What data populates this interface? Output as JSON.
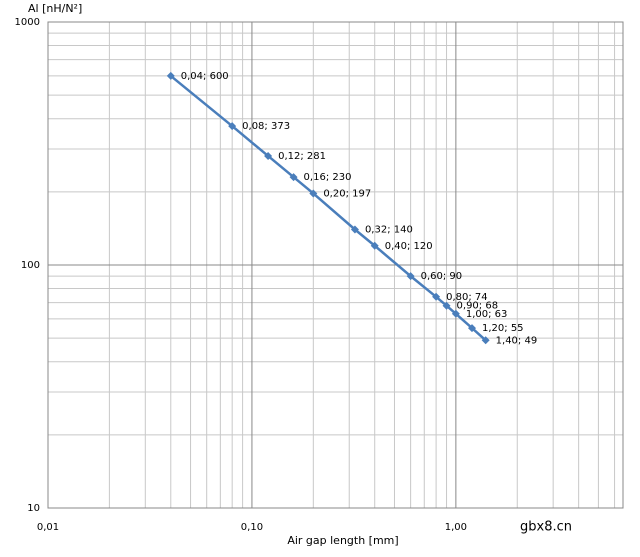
{
  "chart_data": {
    "type": "line",
    "y_title": "Al [nH/N²]",
    "x_title": "Air gap length [mm]",
    "x_log": true,
    "y_log": true,
    "grid": true,
    "minor_grid": true,
    "xlim": [
      0.01,
      6.6
    ],
    "ylim": [
      10,
      1000
    ],
    "xticks": [
      {
        "value": 0.01,
        "label": "0,01"
      },
      {
        "value": 0.1,
        "label": "0,10"
      },
      {
        "value": 1,
        "label": "1,00"
      }
    ],
    "yticks": [
      10,
      100,
      1000
    ],
    "series": [
      {
        "color": "#4a7ebb",
        "x": [
          0.04,
          0.08,
          0.12,
          0.16,
          0.2,
          0.32,
          0.4,
          0.6,
          0.8,
          0.9,
          1.0,
          1.2,
          1.4
        ],
        "values": [
          600,
          373,
          281,
          230,
          197,
          140,
          120,
          90,
          74,
          68,
          63,
          55,
          49
        ],
        "value_labels": [
          "0,04; 600",
          "0,08; 373",
          "0,12; 281",
          "0,16; 230",
          "0,20; 197",
          "0,32; 140",
          "0,40; 120",
          "0,60; 90",
          "0,80; 74",
          "0,90; 68",
          "1,00; 63",
          "1,20; 55",
          "1,40; 49"
        ]
      }
    ],
    "watermark": "gbx8.cn"
  }
}
